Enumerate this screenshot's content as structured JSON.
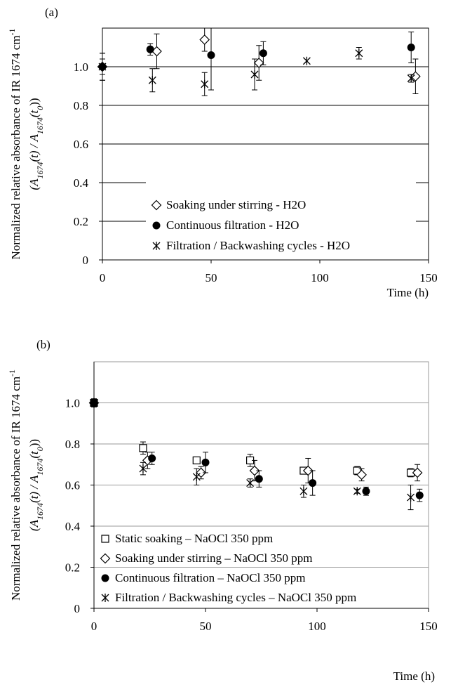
{
  "chart_data": [
    {
      "type": "scatter",
      "panel_label": "(a)",
      "xlabel": "Time (h)",
      "ylabel_line1": "Normalized relative absorbance of IR 1674 cm",
      "ylabel_sup": "-1",
      "ylabel_line2_parts": [
        "(A",
        "1674",
        "(t) / A",
        "1674",
        "(t",
        "0",
        "))"
      ],
      "xlim": [
        0,
        150
      ],
      "ylim": [
        0,
        1.2
      ],
      "xticks": [
        0,
        50,
        100,
        150
      ],
      "yticks": [
        0,
        0.2,
        0.4,
        0.6,
        0.8,
        1.0
      ],
      "ytick_labels": [
        "0",
        "0.2",
        "0.4",
        "0.6",
        "0.8",
        "1.0"
      ],
      "gridlines": [
        0.2,
        0.4,
        0.6,
        0.8,
        1.0
      ],
      "legend_position": "center-left",
      "series": [
        {
          "name": "Soaking under stirring - H2O",
          "marker": "diamond-open",
          "x": [
            0,
            25,
            47,
            72,
            144
          ],
          "y": [
            1.0,
            1.08,
            1.14,
            1.02,
            0.95
          ],
          "err": [
            0.07,
            0.09,
            0.06,
            0.09,
            0.09
          ]
        },
        {
          "name": "Continuous filtration - H2O",
          "marker": "circle-filled",
          "x": [
            0,
            22,
            50,
            74,
            142
          ],
          "y": [
            1.0,
            1.09,
            1.06,
            1.07,
            1.1
          ],
          "err": [
            0.07,
            0.03,
            0.18,
            0.06,
            0.08
          ]
        },
        {
          "name": "Filtration / Backwashing cycles - H2O",
          "marker": "asterisk",
          "x": [
            0,
            23,
            47,
            70,
            94,
            118,
            142
          ],
          "y": [
            1.0,
            0.93,
            0.91,
            0.96,
            1.03,
            1.07,
            0.94
          ],
          "err": [
            0.04,
            0.06,
            0.06,
            0.08,
            0.0,
            0.03,
            0.02
          ]
        }
      ]
    },
    {
      "type": "scatter",
      "panel_label": "(b)",
      "xlabel": "Time (h)",
      "ylabel_line1": "Normalized relative absorbance of IR 1674 cm",
      "ylabel_sup": "-1",
      "ylabel_line2_parts": [
        "(A",
        "1674",
        "(t) / A",
        "1674",
        "(t",
        "0",
        "))"
      ],
      "xlim": [
        0,
        150
      ],
      "ylim": [
        0,
        1.2
      ],
      "xticks": [
        0,
        50,
        100,
        150
      ],
      "yticks": [
        0,
        0.2,
        0.4,
        0.6,
        0.8,
        1.0
      ],
      "ytick_labels": [
        "0",
        "0.2",
        "0.4",
        "0.6",
        "0.8",
        "1.0"
      ],
      "gridlines": [
        0.2,
        0.4,
        0.6,
        0.8,
        1.0
      ],
      "legend_position": "bottom-left",
      "series": [
        {
          "name": "Static soaking – NaOCl 350 ppm",
          "marker": "square-open",
          "x": [
            0,
            22,
            46,
            70,
            94,
            118,
            142
          ],
          "y": [
            1.0,
            0.78,
            0.72,
            0.72,
            0.67,
            0.67,
            0.66
          ],
          "err": [
            0.01,
            0.03,
            0.01,
            0.03,
            0.01,
            0.02,
            0.02
          ]
        },
        {
          "name": "Soaking under stirring – NaOCl 350 ppm",
          "marker": "diamond-open",
          "x": [
            0,
            24,
            48,
            72,
            96,
            120,
            145
          ],
          "y": [
            1.0,
            0.72,
            0.66,
            0.67,
            0.67,
            0.65,
            0.66
          ],
          "err": [
            0.01,
            0.04,
            0.03,
            0.05,
            0.06,
            0.03,
            0.04
          ]
        },
        {
          "name": "Continuous filtration – NaOCl 350 ppm",
          "marker": "circle-filled",
          "x": [
            0,
            26,
            50,
            74,
            98,
            122,
            146
          ],
          "y": [
            1.0,
            0.73,
            0.71,
            0.63,
            0.61,
            0.57,
            0.55
          ],
          "err": [
            0.01,
            0.03,
            0.05,
            0.04,
            0.06,
            0.02,
            0.03
          ]
        },
        {
          "name": "Filtration / Backwashing cycles – NaOCl 350 ppm",
          "marker": "asterisk",
          "x": [
            0,
            22,
            46,
            70,
            94,
            118,
            142
          ],
          "y": [
            1.0,
            0.68,
            0.64,
            0.61,
            0.57,
            0.57,
            0.54
          ],
          "err": [
            0.02,
            0.03,
            0.04,
            0.02,
            0.03,
            0.01,
            0.06
          ]
        }
      ]
    }
  ]
}
